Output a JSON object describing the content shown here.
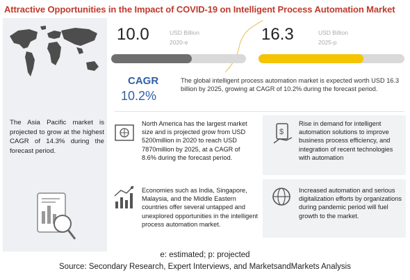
{
  "title": "Attractive Opportunities in the Impact of COVID-19 on Intelligent Process Automation Market",
  "left_panel": {
    "region_text": "The Asia Pacific market is projected to grow at the highest CAGR of 14.3% during the forecast period."
  },
  "stats": {
    "left": {
      "value": "10.0",
      "unit": "USD Billion",
      "year": "2020-e",
      "bar_fill_pct": 60,
      "bar_color": "#6e6e6e"
    },
    "right": {
      "value": "16.3",
      "unit": "USD Billion",
      "year": "2025-p",
      "bar_fill_pct": 72,
      "bar_color": "#f5c400"
    }
  },
  "cagr": {
    "label": "CAGR",
    "value": "10.2%",
    "text": "The global intelligent process automation market is expected worth USD 16.3 billion by 2025, growing at CAGR of 10.2% during the forecast period."
  },
  "insights": {
    "north_america": "North America has the largest market size and is projected grow from USD 5200million in 2020 to reach USD 7870million by 2025, at a CAGR of 8.6% during the forecast period.",
    "economies": "Economies such as India, Singapore, Malaysia, and the Middle Eastern countries offer several untapped and unexplored opportunities in the intelligent process automation market.",
    "demand": "Rise in demand for intelligent automation solutions to improve business process efficiency, and integration of recent technologies with automation",
    "digitalization": "Increased automation and serious digitalization efforts by organizations during pandemic period will fuel growth to the market."
  },
  "footer": {
    "note": "e: estimated; p: projected",
    "source": "Source: Secondary Research, Expert Interviews, and MarketsandMarkets Analysis"
  },
  "colors": {
    "title": "#c0392b",
    "accent_blue": "#2f5fa8",
    "accent_yellow": "#f5c400",
    "panel": "#eef0f3"
  }
}
